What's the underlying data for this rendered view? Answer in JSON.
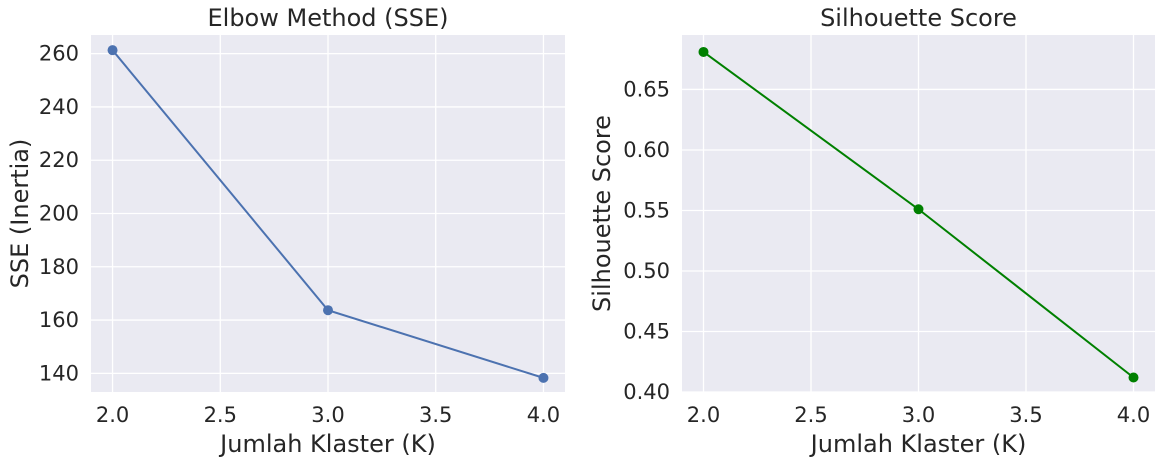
{
  "chart_data": [
    {
      "type": "line",
      "title": "Elbow Method (SSE)",
      "xlabel": "Jumlah Klaster (K)",
      "ylabel": "SSE (Inertia)",
      "x": [
        2.0,
        3.0,
        4.0
      ],
      "series": [
        {
          "values": [
            261.3,
            163.7,
            138.3
          ],
          "color": "#4c72b0"
        }
      ],
      "xlim": [
        1.9,
        4.1
      ],
      "ylim": [
        133.0,
        267.0
      ],
      "xticks": [
        2.0,
        2.5,
        3.0,
        3.5,
        4.0
      ],
      "xtick_labels": [
        "2.0",
        "2.5",
        "3.0",
        "3.5",
        "4.0"
      ],
      "yticks": [
        140,
        160,
        180,
        200,
        220,
        240,
        260
      ],
      "ytick_labels": [
        "140",
        "160",
        "180",
        "200",
        "220",
        "240",
        "260"
      ],
      "grid": true,
      "marker": "circle"
    },
    {
      "type": "line",
      "title": "Silhouette Score",
      "xlabel": "Jumlah Klaster (K)",
      "ylabel": "Silhouette Score",
      "x": [
        2.0,
        3.0,
        4.0
      ],
      "series": [
        {
          "values": [
            0.681,
            0.551,
            0.412
          ],
          "color": "#008000"
        }
      ],
      "xlim": [
        1.9,
        4.1
      ],
      "ylim": [
        0.4,
        0.695
      ],
      "xticks": [
        2.0,
        2.5,
        3.0,
        3.5,
        4.0
      ],
      "xtick_labels": [
        "2.0",
        "2.5",
        "3.0",
        "3.5",
        "4.0"
      ],
      "yticks": [
        0.4,
        0.45,
        0.5,
        0.55,
        0.6,
        0.65
      ],
      "ytick_labels": [
        "0.40",
        "0.45",
        "0.50",
        "0.55",
        "0.60",
        "0.65"
      ],
      "grid": true,
      "marker": "circle"
    }
  ]
}
